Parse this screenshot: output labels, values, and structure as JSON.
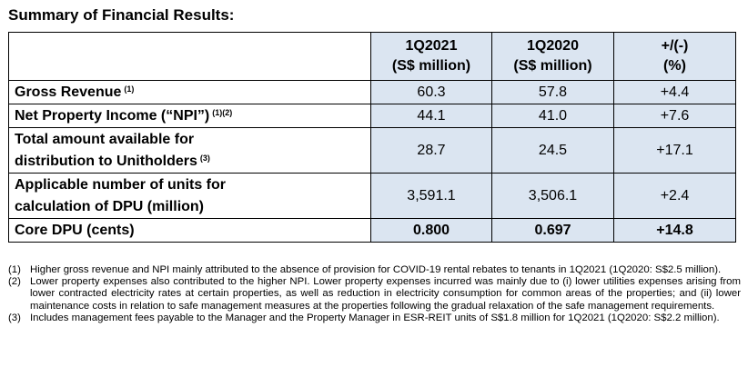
{
  "title": "Summary of Financial Results:",
  "table": {
    "columns": [
      {
        "line1": "1Q2021",
        "line2": "(S$ million)"
      },
      {
        "line1": "1Q2020",
        "line2": "(S$ million)"
      },
      {
        "line1": "+/(-)",
        "line2": "(%)"
      }
    ],
    "rows": [
      {
        "label_line1": "Gross Revenue",
        "label_line2": "",
        "sup": "(1)",
        "values": [
          "60.3",
          "57.8",
          "+4.4"
        ]
      },
      {
        "label_line1": "Net Property Income (“NPI”)",
        "label_line2": "",
        "sup": "(1)(2)",
        "values": [
          "44.1",
          "41.0",
          "+7.6"
        ]
      },
      {
        "label_line1": "Total amount available for",
        "label_line2": "distribution to Unitholders",
        "sup": "(3)",
        "values": [
          "28.7",
          "24.5",
          "+17.1"
        ]
      },
      {
        "label_line1": "Applicable number of units for",
        "label_line2": "calculation of DPU (million)",
        "sup": "",
        "values": [
          "3,591.1",
          "3,506.1",
          "+2.4"
        ]
      },
      {
        "label_line1": "Core DPU (cents)",
        "label_line2": "",
        "sup": "",
        "values": [
          "0.800",
          "0.697",
          "+14.8"
        ]
      }
    ]
  },
  "notes": [
    {
      "marker": "(1)",
      "text": "Higher gross revenue and NPI mainly attributed to the absence of provision for COVID-19 rental rebates to tenants in 1Q2021 (1Q2020: S$2.5 million)."
    },
    {
      "marker": "(2)",
      "text": "Lower property expenses also contributed to the higher NPI. Lower property expenses incurred was mainly due to (i) lower utilities expenses arising from lower contracted electricity rates at certain properties, as well as reduction in electricity consumption for common areas of the properties; and (ii) lower maintenance costs in relation to safe management measures at the properties following the gradual relaxation of the safe management requirements."
    },
    {
      "marker": "(3)",
      "text": "Includes management fees payable to the Manager and the Property Manager in ESR-REIT units of S$1.8 million for 1Q2021 (1Q2020: S$2.2 million)."
    }
  ]
}
